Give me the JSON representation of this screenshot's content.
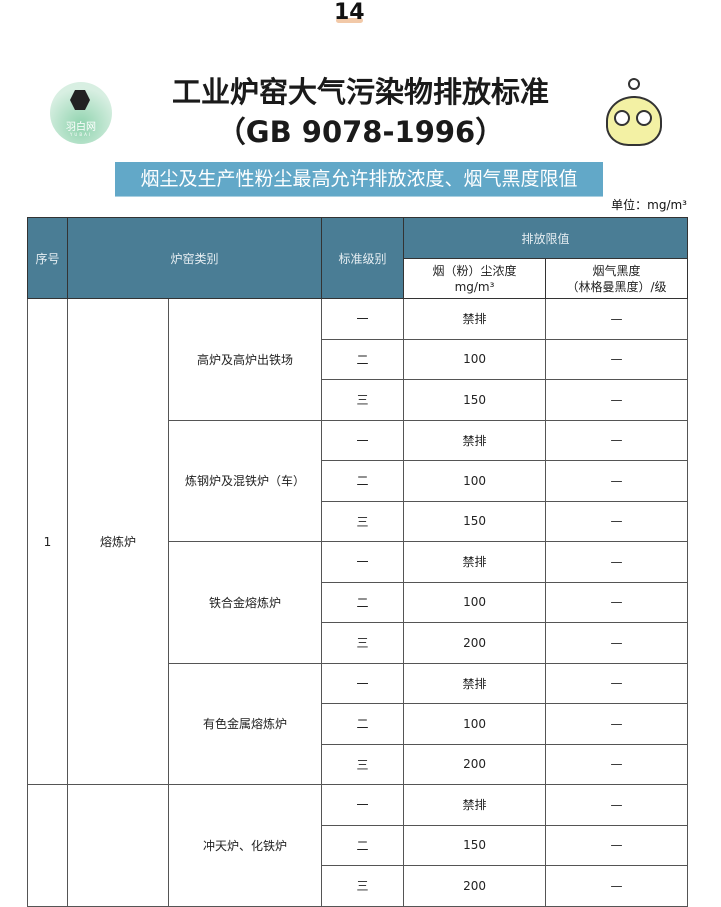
{
  "page_number": "14",
  "logo": {
    "text": "羽白网",
    "subtext": "YUBAI"
  },
  "title": {
    "line1": "工业炉窑大气污染物排放标准",
    "line2": "（GB 9078-1996）"
  },
  "banner": "烟尘及生产性粉尘最高允许排放浓度、烟气黑度限值",
  "unit": "单位：mg/m³",
  "header": {
    "no": "序号",
    "category": "炉窑类别",
    "level": "标准级别",
    "limits": "排放限值",
    "dust_line1": "烟（粉）尘浓度",
    "dust_line2": "mg/m³",
    "smoke_line1": "烟气黑度",
    "smoke_line2": "（林格曼黑度）/级"
  },
  "groups": [
    {
      "no": "1",
      "type": "熔炼炉",
      "subs": [
        {
          "name": "高炉及高炉出铁场",
          "rows": [
            [
              "一",
              "禁排",
              "—"
            ],
            [
              "二",
              "100",
              "—"
            ],
            [
              "三",
              "150",
              "—"
            ]
          ]
        },
        {
          "name": "炼钢炉及混铁炉（车）",
          "rows": [
            [
              "一",
              "禁排",
              "—"
            ],
            [
              "二",
              "100",
              "—"
            ],
            [
              "三",
              "150",
              "—"
            ]
          ]
        },
        {
          "name": "铁合金熔炼炉",
          "rows": [
            [
              "一",
              "禁排",
              "—"
            ],
            [
              "二",
              "100",
              "—"
            ],
            [
              "三",
              "200",
              "—"
            ]
          ]
        },
        {
          "name": "有色金属熔炼炉",
          "rows": [
            [
              "一",
              "禁排",
              "—"
            ],
            [
              "二",
              "100",
              "—"
            ],
            [
              "三",
              "200",
              "—"
            ]
          ]
        }
      ]
    },
    {
      "no": "",
      "type": "",
      "subs": [
        {
          "name": "冲天炉、化铁炉",
          "rows": [
            [
              "一",
              "禁排",
              "—"
            ],
            [
              "二",
              "150",
              "—"
            ],
            [
              "三",
              "200",
              "—"
            ]
          ]
        }
      ]
    }
  ]
}
